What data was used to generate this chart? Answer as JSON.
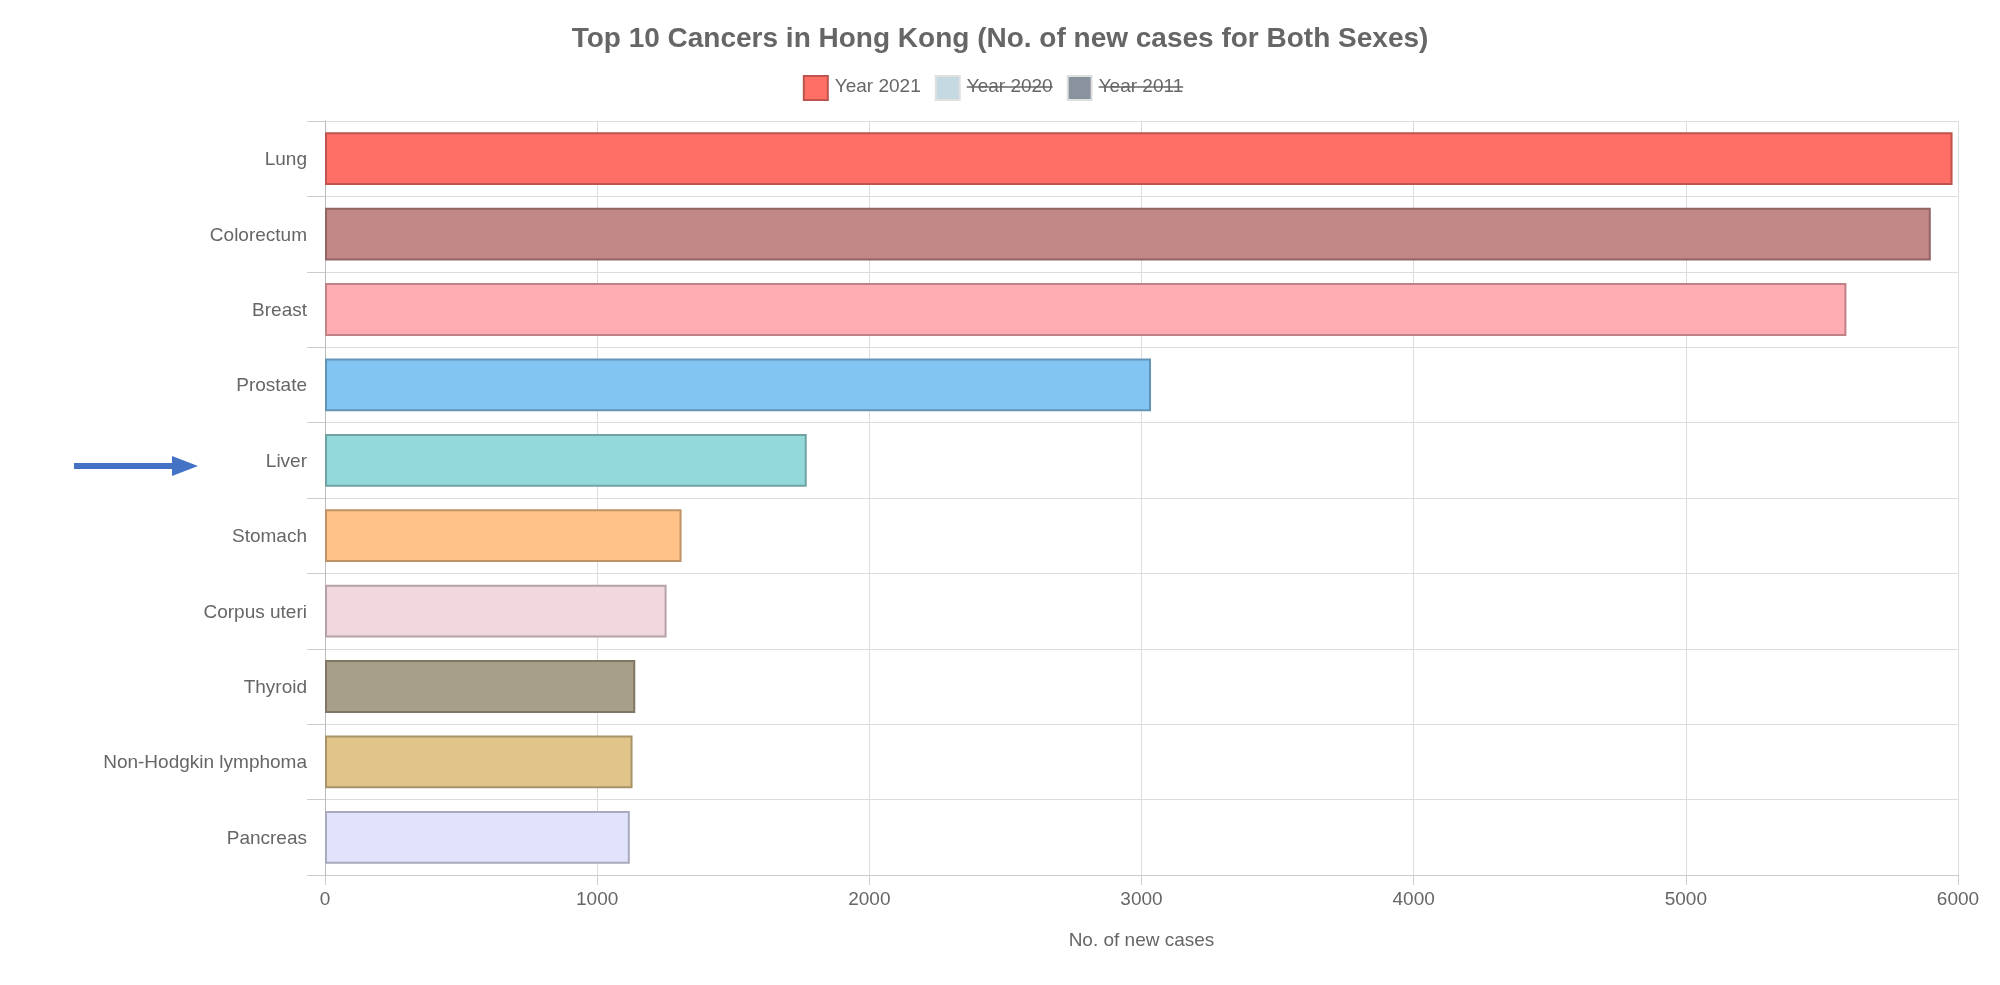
{
  "chart_data": {
    "type": "bar",
    "orientation": "horizontal",
    "title": "Top 10 Cancers in Hong Kong (No. of new cases for Both Sexes)",
    "xlabel": "No. of new cases",
    "categories": [
      "Lung",
      "Colorectum",
      "Breast",
      "Prostate",
      "Liver",
      "Stomach",
      "Corpus uteri",
      "Thyroid",
      "Non-Hodgkin lymphoma",
      "Pancreas"
    ],
    "series": [
      {
        "name": "Year 2021",
        "color": "#ff6f66",
        "colors": [
          "#ff6f66",
          "#c28787",
          "#ffadb3",
          "#83c5f2",
          "#94d9da",
          "#ffc288",
          "#f1d8de",
          "#a89f88",
          "#e0c48a",
          "#e1e2fc"
        ],
        "values": [
          5980,
          5900,
          5590,
          3035,
          1770,
          1310,
          1255,
          1140,
          1130,
          1120
        ]
      },
      {
        "name": "Year 2020",
        "color": "#c5d9e3",
        "values": [
          null,
          null,
          null,
          null,
          null,
          null,
          null,
          null,
          null,
          null
        ]
      },
      {
        "name": "Year 2011",
        "color": "#8a929d",
        "values": [
          null,
          null,
          null,
          null,
          null,
          null,
          null,
          null,
          null,
          null
        ]
      }
    ],
    "xlim": [
      0,
      6000
    ],
    "xticks": [
      0,
      1000,
      2000,
      3000,
      4000,
      5000,
      6000
    ],
    "grid": true,
    "legend": "top"
  }
}
